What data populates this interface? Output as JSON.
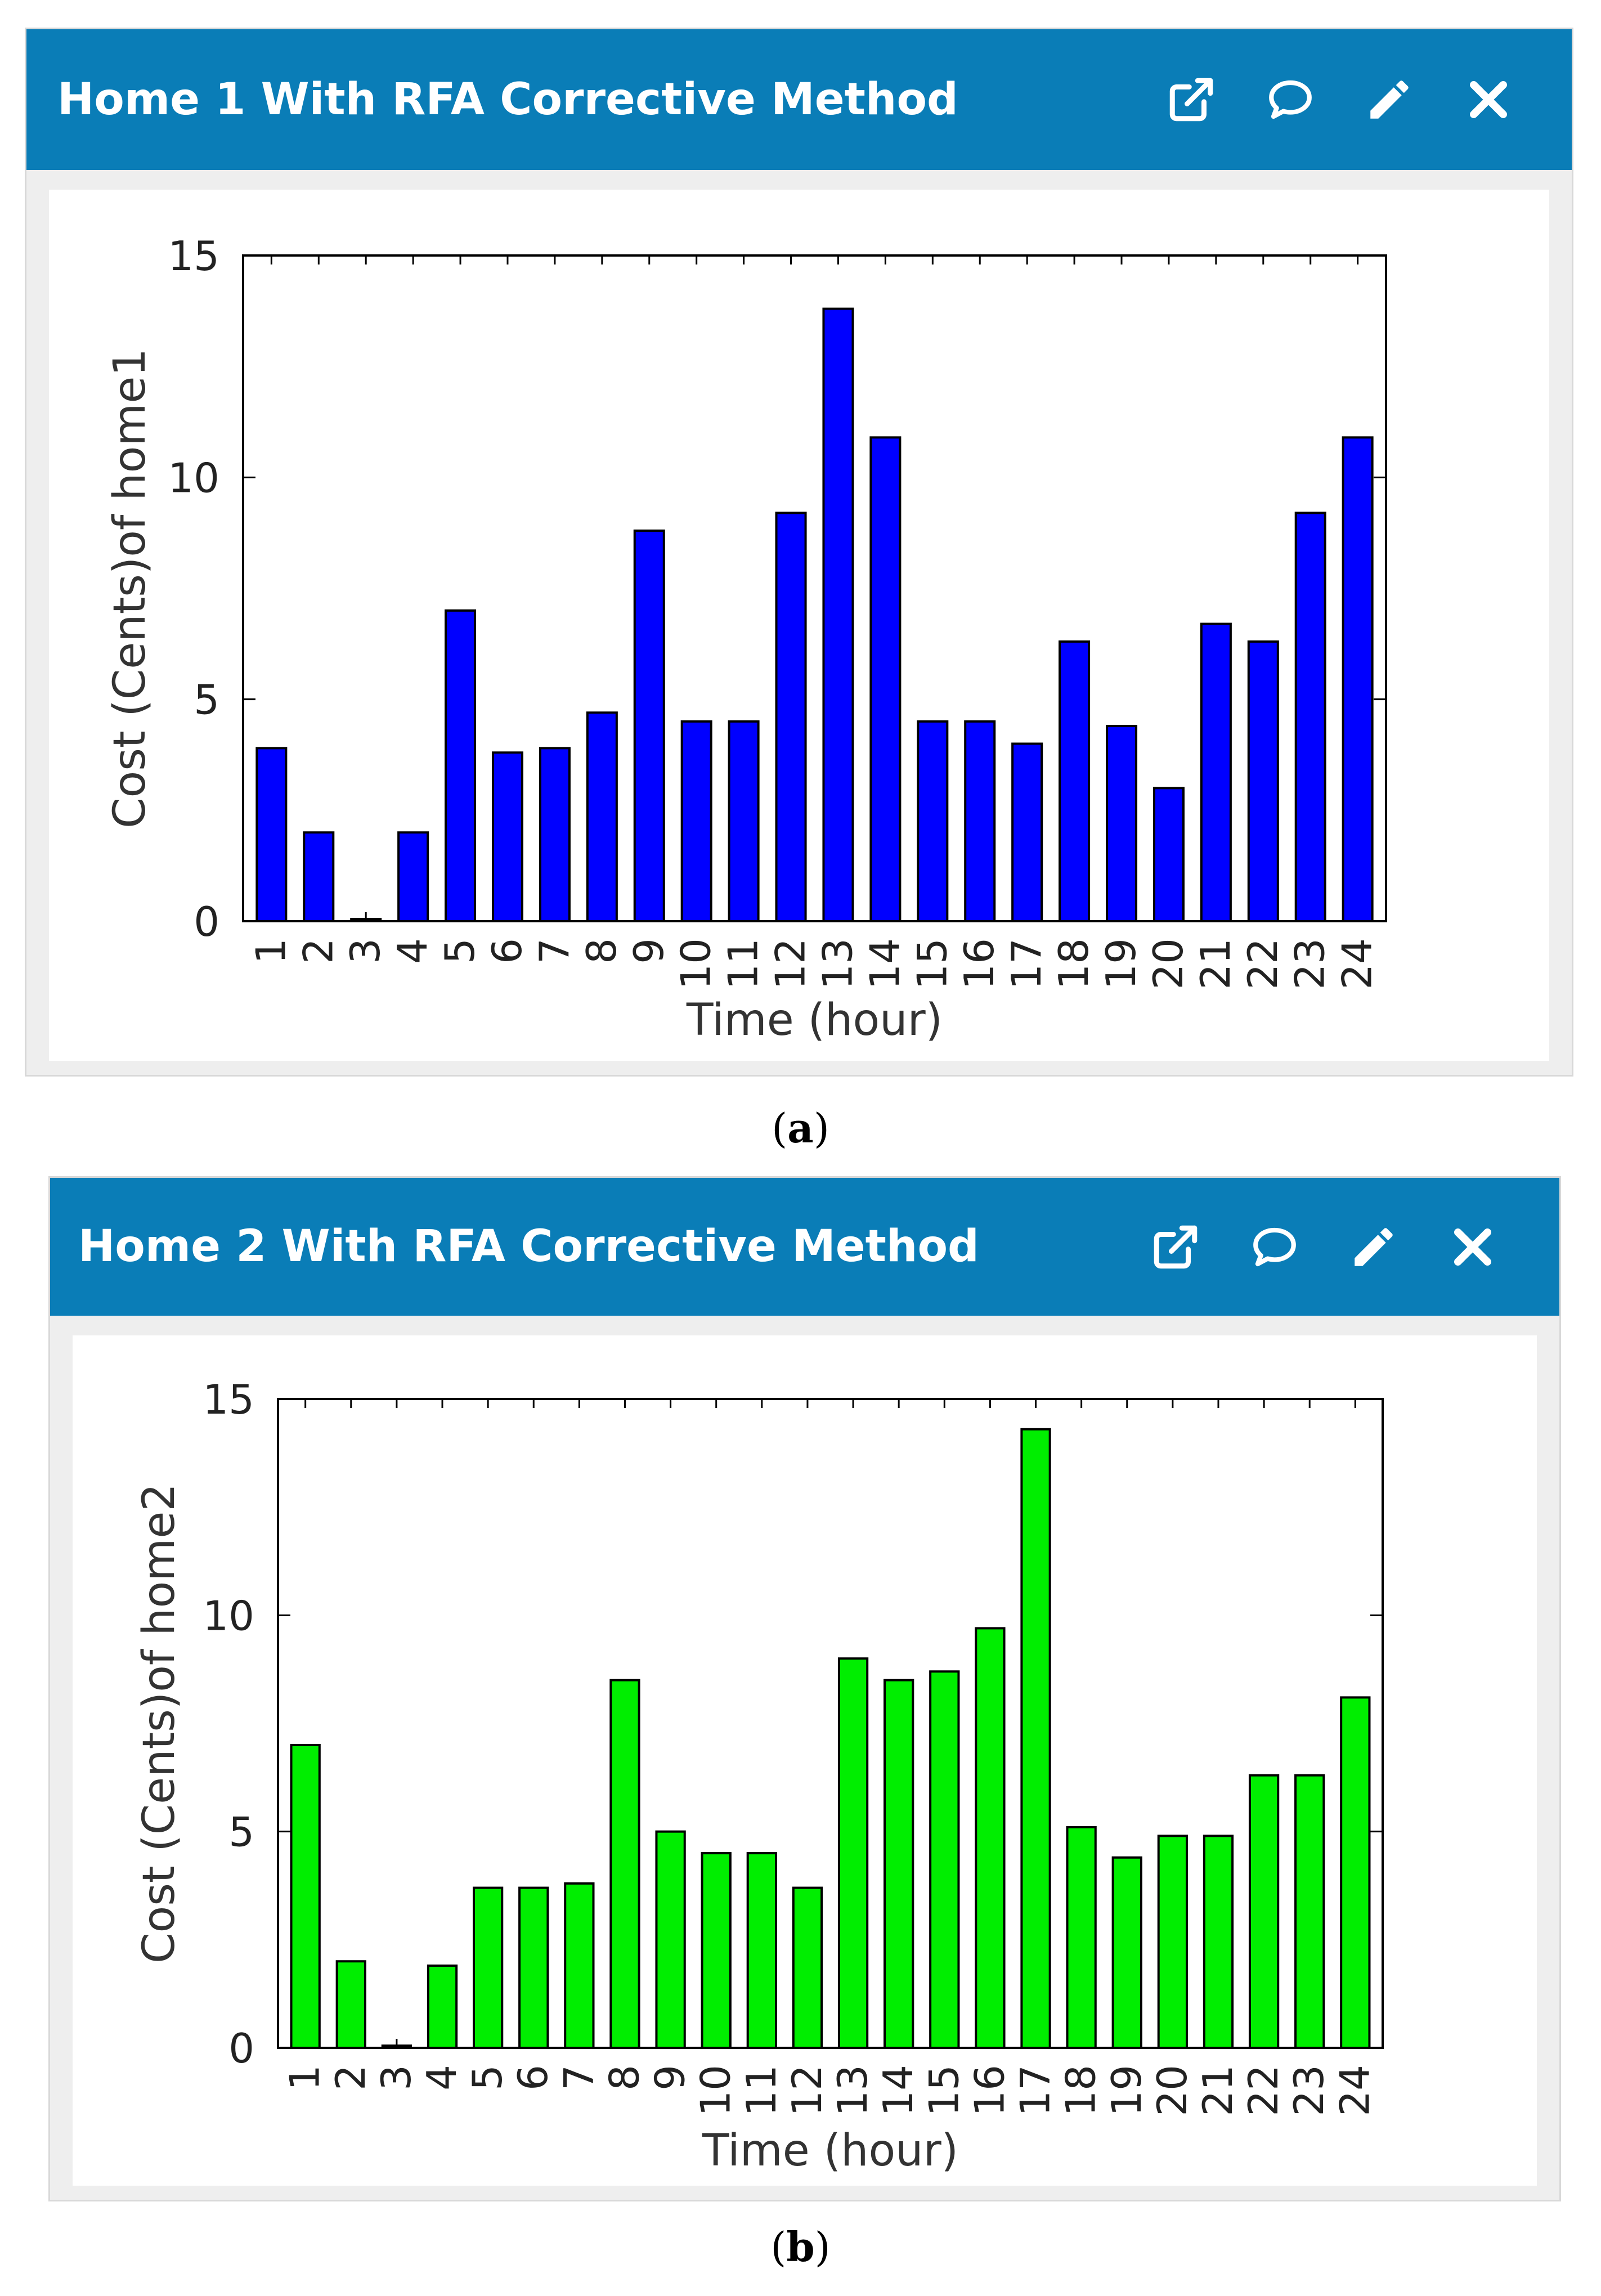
{
  "panels": [
    {
      "title": "Home 1 With RFA Corrective Method",
      "caption_label": "a",
      "tools": [
        {
          "icon": "external-link-icon"
        },
        {
          "icon": "comment-icon"
        },
        {
          "icon": "pencil-icon"
        },
        {
          "icon": "close-icon"
        }
      ]
    },
    {
      "title": "Home 2 With RFA Corrective Method",
      "caption_label": "b",
      "tools": [
        {
          "icon": "external-link-icon"
        },
        {
          "icon": "comment-icon"
        },
        {
          "icon": "pencil-icon"
        },
        {
          "icon": "close-icon"
        }
      ]
    }
  ],
  "colors": {
    "titlebar": "#0a7db7",
    "home1_bar": "#0000ff",
    "home2_bar": "#00ee00"
  },
  "chart_data": [
    {
      "type": "bar",
      "title": "",
      "xlabel": "Time (hour)",
      "ylabel": "Cost (Cents)of home1",
      "categories": [
        "1",
        "2",
        "3",
        "4",
        "5",
        "6",
        "7",
        "8",
        "9",
        "10",
        "11",
        "12",
        "13",
        "14",
        "15",
        "16",
        "17",
        "18",
        "19",
        "20",
        "21",
        "22",
        "23",
        "24"
      ],
      "values": [
        3.9,
        2.0,
        0.05,
        2.0,
        7.0,
        3.8,
        3.9,
        4.7,
        8.8,
        4.5,
        4.5,
        9.2,
        13.8,
        10.9,
        4.5,
        4.5,
        4.0,
        6.3,
        4.4,
        3.0,
        6.7,
        6.3,
        9.2,
        10.9
      ],
      "ylim": [
        0,
        15
      ],
      "yticks": [
        "0",
        "5",
        "10",
        "15"
      ],
      "bar_color": "#0000ff",
      "grid": false
    },
    {
      "type": "bar",
      "title": "",
      "xlabel": "Time (hour)",
      "ylabel": "Cost (Cents)of home2",
      "categories": [
        "1",
        "2",
        "3",
        "4",
        "5",
        "6",
        "7",
        "8",
        "9",
        "10",
        "11",
        "12",
        "13",
        "14",
        "15",
        "16",
        "17",
        "18",
        "19",
        "20",
        "21",
        "22",
        "23",
        "24"
      ],
      "values": [
        7.0,
        2.0,
        0.05,
        1.9,
        3.7,
        3.7,
        3.8,
        8.5,
        5.0,
        4.5,
        4.5,
        3.7,
        9.0,
        8.5,
        8.7,
        9.7,
        14.3,
        5.1,
        4.4,
        4.9,
        4.9,
        6.3,
        6.3,
        8.1
      ],
      "ylim": [
        0,
        15
      ],
      "yticks": [
        "0",
        "5",
        "10",
        "15"
      ],
      "bar_color": "#00ee00",
      "grid": false
    }
  ]
}
